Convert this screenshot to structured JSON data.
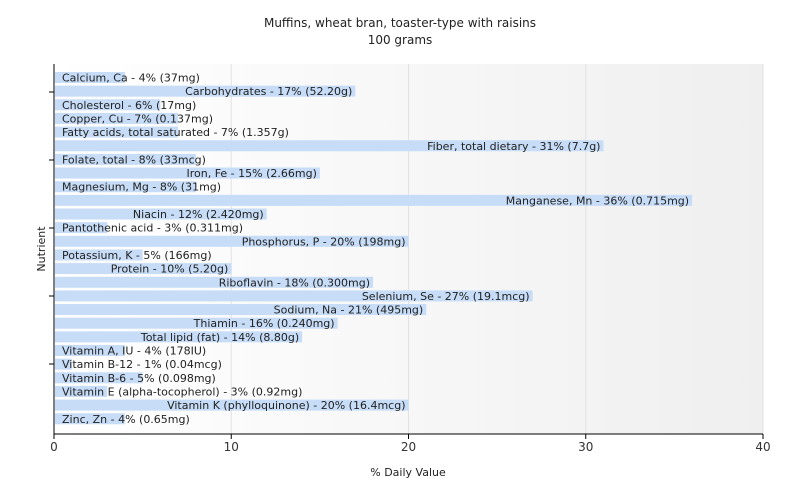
{
  "chart_data": {
    "type": "bar",
    "orientation": "horizontal",
    "title": "Muffins, wheat bran, toaster-type with raisins",
    "subtitle": "100 grams",
    "xlabel": "% Daily Value",
    "ylabel": "Nutrient",
    "xlim": [
      0,
      40
    ],
    "xticks": [
      0,
      10,
      20,
      30,
      40
    ],
    "grid": true,
    "bar_color": "#c6dcf7",
    "bars": [
      {
        "value": 4,
        "label": "Calcium, Ca - 4% (37mg)"
      },
      {
        "value": 17,
        "label": "Carbohydrates - 17% (52.20g)"
      },
      {
        "value": 6,
        "label": "Cholesterol - 6% (17mg)"
      },
      {
        "value": 7,
        "label": "Copper, Cu - 7% (0.137mg)"
      },
      {
        "value": 7,
        "label": "Fatty acids, total saturated - 7% (1.357g)"
      },
      {
        "value": 31,
        "label": "Fiber, total dietary - 31% (7.7g)"
      },
      {
        "value": 8,
        "label": "Folate, total - 8% (33mcg)"
      },
      {
        "value": 15,
        "label": "Iron, Fe - 15% (2.66mg)"
      },
      {
        "value": 8,
        "label": "Magnesium, Mg - 8% (31mg)"
      },
      {
        "value": 36,
        "label": "Manganese, Mn - 36% (0.715mg)"
      },
      {
        "value": 12,
        "label": "Niacin - 12% (2.420mg)"
      },
      {
        "value": 3,
        "label": "Pantothenic acid - 3% (0.311mg)"
      },
      {
        "value": 20,
        "label": "Phosphorus, P - 20% (198mg)"
      },
      {
        "value": 5,
        "label": "Potassium, K - 5% (166mg)"
      },
      {
        "value": 10,
        "label": "Protein - 10% (5.20g)"
      },
      {
        "value": 18,
        "label": "Riboflavin - 18% (0.300mg)"
      },
      {
        "value": 27,
        "label": "Selenium, Se - 27% (19.1mcg)"
      },
      {
        "value": 21,
        "label": "Sodium, Na - 21% (495mg)"
      },
      {
        "value": 16,
        "label": "Thiamin - 16% (0.240mg)"
      },
      {
        "value": 14,
        "label": "Total lipid (fat) - 14% (8.80g)"
      },
      {
        "value": 4,
        "label": "Vitamin A, IU - 4% (178IU)"
      },
      {
        "value": 1,
        "label": "Vitamin B-12 - 1% (0.04mcg)"
      },
      {
        "value": 5,
        "label": "Vitamin B-6 - 5% (0.098mg)"
      },
      {
        "value": 3,
        "label": "Vitamin E (alpha-tocopherol) - 3% (0.92mg)"
      },
      {
        "value": 20,
        "label": "Vitamin K (phylloquinone) - 20% (16.4mcg)"
      },
      {
        "value": 4,
        "label": "Zinc, Zn - 4% (0.65mg)"
      }
    ]
  }
}
